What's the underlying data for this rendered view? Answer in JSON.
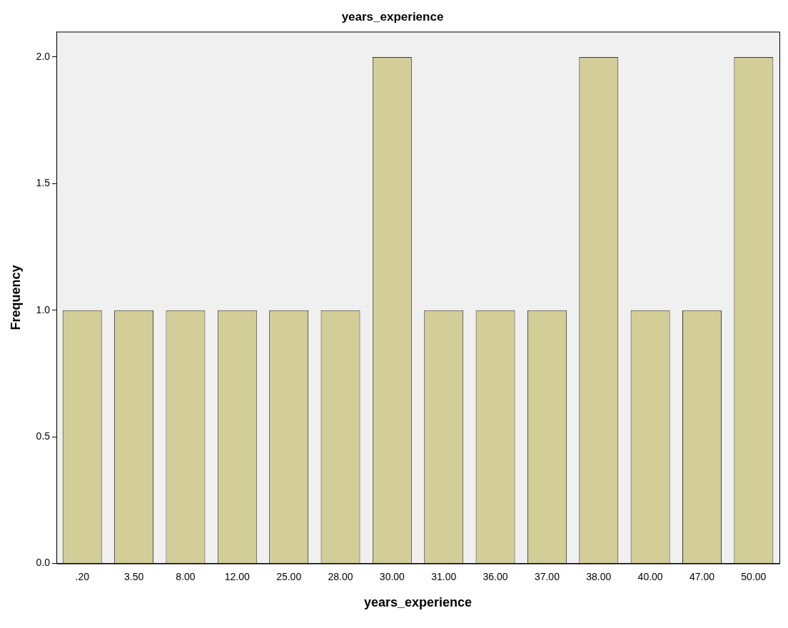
{
  "chart_data": {
    "type": "bar",
    "title": "years_experience",
    "xlabel": "years_experience",
    "ylabel": "Frequency",
    "categories": [
      ".20",
      "3.50",
      "8.00",
      "12.00",
      "25.00",
      "28.00",
      "30.00",
      "31.00",
      "36.00",
      "37.00",
      "38.00",
      "40.00",
      "47.00",
      "50.00"
    ],
    "values": [
      1,
      1,
      1,
      1,
      1,
      1,
      2,
      1,
      1,
      1,
      2,
      1,
      1,
      2
    ],
    "color": "#d3ce97",
    "ylim": [
      0,
      2.1
    ],
    "yticks": [
      {
        "value": 0,
        "label": "0.0"
      },
      {
        "value": 0.5,
        "label": "0.5"
      },
      {
        "value": 1,
        "label": "1.0"
      },
      {
        "value": 1.5,
        "label": "1.5"
      },
      {
        "value": 2,
        "label": "2.0"
      }
    ],
    "grid": false,
    "legend": false
  }
}
